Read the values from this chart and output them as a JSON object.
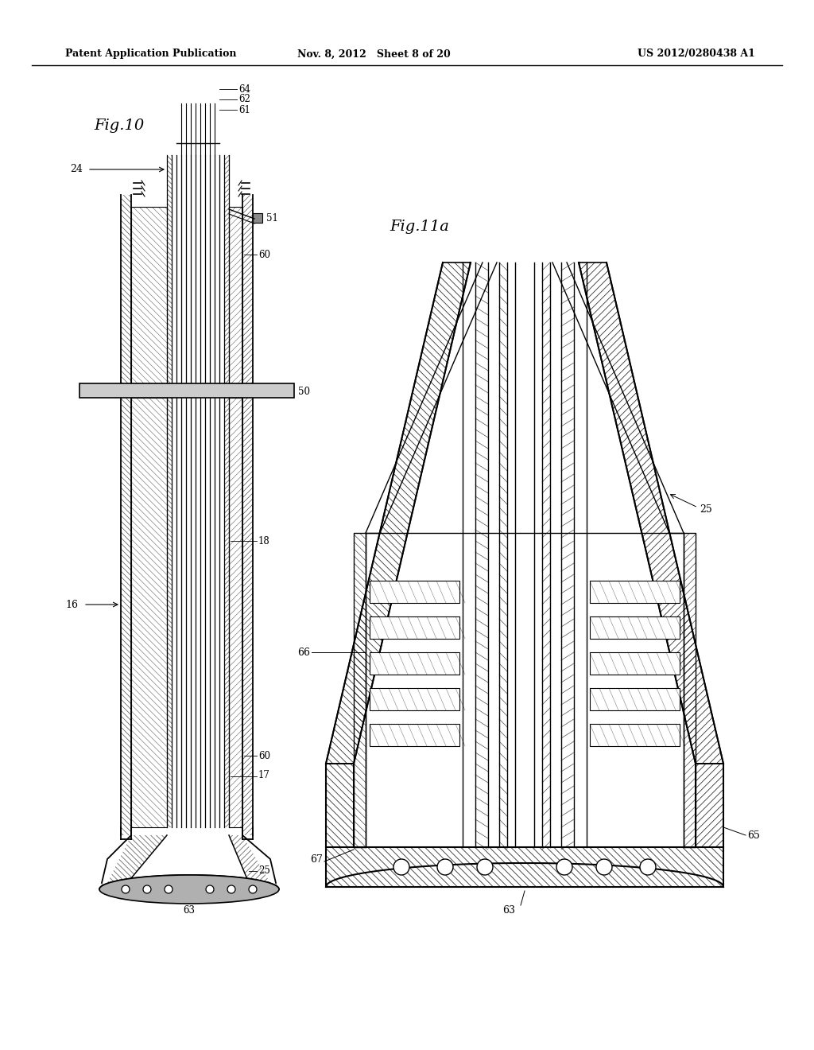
{
  "background_color": "#ffffff",
  "header_left": "Patent Application Publication",
  "header_center": "Nov. 8, 2012   Sheet 8 of 20",
  "header_right": "US 2012/0280438 A1",
  "fig10_label": "Fig.10",
  "fig11a_label": "Fig.11a"
}
